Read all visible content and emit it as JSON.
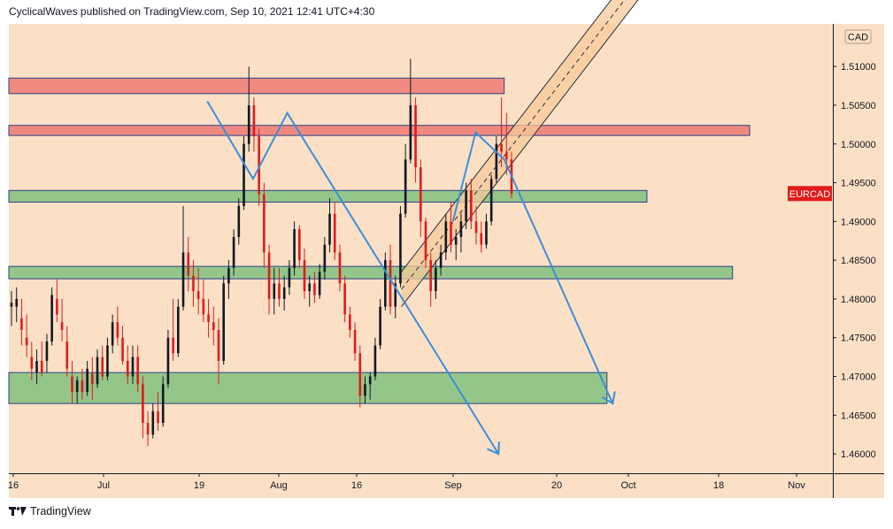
{
  "header": {
    "publisher_line": "CyclicalWaves published on TradingView.com, Sep 10, 2021 12:41 UTC+4:30"
  },
  "footer": {
    "brand": "TradingView"
  },
  "colors": {
    "background": "#fbe0c6",
    "up_candle": "#131722",
    "down_candle": "#e21a1a",
    "red_zone": "#f08a80",
    "green_zone": "#94c68a",
    "zone_border": "#2c3f85",
    "channel_fill": "#f8c999",
    "projection": "#3b8fd9",
    "label_bg": "#e21a1a"
  },
  "chart_data": {
    "type": "candlestick",
    "symbol": "EURCAD",
    "currency": "CAD",
    "y_axis": {
      "ticks": [
        "1.51000",
        "1.50500",
        "1.50000",
        "1.49500",
        "1.49000",
        "1.48500",
        "1.48000",
        "1.47500",
        "1.47000",
        "1.46500",
        "1.46000"
      ],
      "ylim": [
        1.4575,
        1.5155
      ]
    },
    "x_axis": {
      "ticks": [
        "16",
        "Jul",
        "19",
        "Aug",
        "16",
        "Sep",
        "20",
        "Oct",
        "18",
        "Nov"
      ]
    },
    "zones": [
      {
        "kind": "resistance",
        "low": 1.5065,
        "high": 1.5085,
        "from": "Jun 14",
        "to": "Sep 10"
      },
      {
        "kind": "resistance",
        "low": 1.5011,
        "high": 1.5024,
        "from": "Jun 14",
        "to": "Oct 23"
      },
      {
        "kind": "support",
        "low": 1.4925,
        "high": 1.494,
        "from": "Jun 14",
        "to": "Oct 5"
      },
      {
        "kind": "support",
        "low": 1.4826,
        "high": 1.4842,
        "from": "Jun 14",
        "to": "Oct 20"
      },
      {
        "kind": "support",
        "low": 1.4665,
        "high": 1.4705,
        "from": "Jun 14",
        "to": "Sep 28"
      }
    ],
    "current_price_label": "EURCAD",
    "current_price": 1.4936,
    "series": [
      {
        "kind": "candles",
        "ohlc": [
          [
            1.479,
            1.481,
            1.4765,
            1.4795
          ],
          [
            1.479,
            1.4815,
            1.477,
            1.48
          ],
          [
            1.4775,
            1.48,
            1.474,
            1.476
          ],
          [
            1.475,
            1.478,
            1.4725,
            1.474
          ],
          [
            1.4725,
            1.4745,
            1.4695,
            1.471
          ],
          [
            1.4705,
            1.4735,
            1.469,
            1.472
          ],
          [
            1.472,
            1.4745,
            1.47,
            1.4705
          ],
          [
            1.472,
            1.4755,
            1.4705,
            1.4745
          ],
          [
            1.4745,
            1.4815,
            1.474,
            1.4805
          ],
          [
            1.48,
            1.4825,
            1.477,
            1.478
          ],
          [
            1.477,
            1.48,
            1.4745,
            1.476
          ],
          [
            1.4745,
            1.4765,
            1.47,
            1.471
          ],
          [
            1.47,
            1.472,
            1.4665,
            1.468
          ],
          [
            1.468,
            1.47,
            1.4665,
            1.4695
          ],
          [
            1.4695,
            1.471,
            1.467,
            1.468
          ],
          [
            1.468,
            1.472,
            1.4675,
            1.471
          ],
          [
            1.4705,
            1.4725,
            1.467,
            1.469
          ],
          [
            1.469,
            1.4735,
            1.4685,
            1.4725
          ],
          [
            1.4725,
            1.474,
            1.4695,
            1.47
          ],
          [
            1.47,
            1.475,
            1.4695,
            1.474
          ],
          [
            1.474,
            1.478,
            1.473,
            1.477
          ],
          [
            1.477,
            1.479,
            1.474,
            1.475
          ],
          [
            1.475,
            1.4765,
            1.4715,
            1.472
          ],
          [
            1.472,
            1.474,
            1.469,
            1.47
          ],
          [
            1.47,
            1.474,
            1.469,
            1.4725
          ],
          [
            1.4725,
            1.474,
            1.468,
            1.469
          ],
          [
            1.469,
            1.47,
            1.462,
            1.464
          ],
          [
            1.464,
            1.4655,
            1.461,
            1.4625
          ],
          [
            1.4625,
            1.4665,
            1.462,
            1.4655
          ],
          [
            1.4655,
            1.468,
            1.463,
            1.464
          ],
          [
            1.464,
            1.47,
            1.4635,
            1.469
          ],
          [
            1.469,
            1.476,
            1.4685,
            1.475
          ],
          [
            1.475,
            1.48,
            1.472,
            1.473
          ],
          [
            1.473,
            1.48,
            1.4725,
            1.479
          ],
          [
            1.479,
            1.492,
            1.4785,
            1.486
          ],
          [
            1.486,
            1.488,
            1.481,
            1.483
          ],
          [
            1.483,
            1.485,
            1.479,
            1.481
          ],
          [
            1.481,
            1.484,
            1.478,
            1.48
          ],
          [
            1.48,
            1.4825,
            1.477,
            1.478
          ],
          [
            1.478,
            1.48,
            1.475,
            1.477
          ],
          [
            1.477,
            1.479,
            1.474,
            1.476
          ],
          [
            1.476,
            1.4775,
            1.469,
            1.472
          ],
          [
            1.472,
            1.483,
            1.4715,
            1.482
          ],
          [
            1.482,
            1.485,
            1.48,
            1.484
          ],
          [
            1.484,
            1.489,
            1.483,
            1.488
          ],
          [
            1.488,
            1.493,
            1.487,
            1.492
          ],
          [
            1.492,
            1.501,
            1.4915,
            1.5
          ],
          [
            1.5,
            1.51,
            1.499,
            1.505
          ],
          [
            1.505,
            1.506,
            1.499,
            1.501
          ],
          [
            1.501,
            1.502,
            1.492,
            1.4935
          ],
          [
            1.4935,
            1.495,
            1.484,
            1.486
          ],
          [
            1.486,
            1.487,
            1.478,
            1.48
          ],
          [
            1.48,
            1.484,
            1.478,
            1.482
          ],
          [
            1.482,
            1.484,
            1.479,
            1.48
          ],
          [
            1.48,
            1.483,
            1.4785,
            1.4815
          ],
          [
            1.4815,
            1.485,
            1.4805,
            1.484
          ],
          [
            1.484,
            1.49,
            1.483,
            1.489
          ],
          [
            1.489,
            1.4895,
            1.484,
            1.485
          ],
          [
            1.485,
            1.4865,
            1.48,
            1.481
          ],
          [
            1.481,
            1.483,
            1.479,
            1.482
          ],
          [
            1.482,
            1.4835,
            1.4795,
            1.4805
          ],
          [
            1.4805,
            1.4845,
            1.48,
            1.4835
          ],
          [
            1.4835,
            1.488,
            1.4825,
            1.487
          ],
          [
            1.487,
            1.493,
            1.486,
            1.491
          ],
          [
            1.491,
            1.4925,
            1.485,
            1.486
          ],
          [
            1.486,
            1.487,
            1.481,
            1.482
          ],
          [
            1.482,
            1.483,
            1.477,
            1.478
          ],
          [
            1.478,
            1.479,
            1.475,
            1.476
          ],
          [
            1.476,
            1.477,
            1.472,
            1.473
          ],
          [
            1.473,
            1.474,
            1.466,
            1.4675
          ],
          [
            1.4675,
            1.47,
            1.4665,
            1.469
          ],
          [
            1.469,
            1.4705,
            1.467,
            1.47
          ],
          [
            1.47,
            1.475,
            1.4695,
            1.474
          ],
          [
            1.474,
            1.48,
            1.4735,
            1.479
          ],
          [
            1.479,
            1.486,
            1.4785,
            1.485
          ],
          [
            1.485,
            1.487,
            1.478,
            1.479
          ],
          [
            1.479,
            1.483,
            1.4775,
            1.482
          ],
          [
            1.482,
            1.492,
            1.4815,
            1.491
          ],
          [
            1.491,
            1.5,
            1.4905,
            1.498
          ],
          [
            1.498,
            1.511,
            1.4975,
            1.505
          ],
          [
            1.505,
            1.506,
            1.495,
            1.497
          ],
          [
            1.497,
            1.498,
            1.488,
            1.49
          ],
          [
            1.49,
            1.4905,
            1.484,
            1.485
          ],
          [
            1.485,
            1.486,
            1.479,
            1.481
          ],
          [
            1.481,
            1.485,
            1.48,
            1.484
          ],
          [
            1.484,
            1.487,
            1.483,
            1.486
          ],
          [
            1.486,
            1.491,
            1.485,
            1.49
          ],
          [
            1.49,
            1.4925,
            1.486,
            1.487
          ],
          [
            1.487,
            1.489,
            1.485,
            1.488
          ],
          [
            1.488,
            1.491,
            1.486,
            1.49
          ],
          [
            1.49,
            1.495,
            1.489,
            1.494
          ],
          [
            1.494,
            1.4955,
            1.489,
            1.49
          ],
          [
            1.49,
            1.492,
            1.487,
            1.4885
          ],
          [
            1.4885,
            1.49,
            1.486,
            1.487
          ],
          [
            1.487,
            1.491,
            1.4865,
            1.49
          ],
          [
            1.49,
            1.496,
            1.4895,
            1.4955
          ],
          [
            1.4955,
            1.501,
            1.495,
            1.5
          ],
          [
            1.5,
            1.506,
            1.497,
            1.499
          ],
          [
            1.499,
            1.504,
            1.496,
            1.498
          ],
          [
            1.498,
            1.499,
            1.493,
            1.4936
          ]
        ]
      },
      {
        "kind": "projection",
        "points": [
          [
            "Jul 20",
            1.5055
          ],
          [
            "Jul 28",
            1.4955
          ],
          [
            "Aug 3",
            1.504
          ],
          [
            "Sep 9",
            1.46
          ]
        ]
      },
      {
        "kind": "projection",
        "points": [
          [
            "Sep 1",
            1.49
          ],
          [
            "Sep 5",
            1.5015
          ],
          [
            "Sep 10",
            1.498
          ],
          [
            "Sep 29",
            1.4665
          ]
        ]
      }
    ],
    "channel": {
      "from": [
        "Aug 23",
        1.479
      ],
      "to": [
        "Oct 7",
        1.522
      ],
      "width": 0.0045
    },
    "grid": false,
    "legend": "none"
  }
}
